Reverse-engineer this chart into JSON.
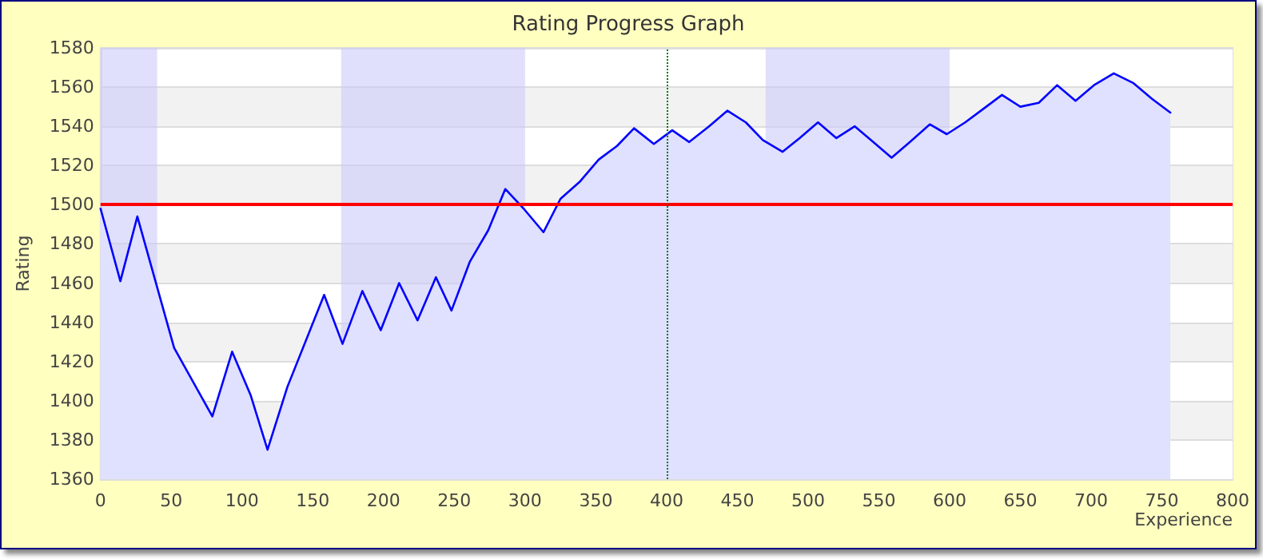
{
  "chart_data": {
    "type": "area",
    "title": "Rating Progress Graph",
    "xlabel": "Experience",
    "ylabel": "Rating",
    "x": [
      0,
      14,
      26,
      52,
      79,
      93,
      106,
      118,
      132,
      158,
      171,
      185,
      198,
      211,
      224,
      237,
      248,
      261,
      274,
      286,
      299,
      313,
      325,
      339,
      352,
      365,
      377,
      391,
      404,
      416,
      430,
      443,
      456,
      468,
      482,
      494,
      507,
      520,
      533,
      546,
      559,
      572,
      586,
      598,
      611,
      624,
      637,
      650,
      663,
      676,
      689,
      702,
      716,
      730,
      743,
      756
    ],
    "series": [
      {
        "color": "#0000ff",
        "values": [
          1498,
          1461,
          1494,
          1427,
          1392,
          1425,
          1403,
          1375,
          1407,
          1454,
          1429,
          1456,
          1436,
          1460,
          1441,
          1463,
          1446,
          1471,
          1487,
          1508,
          1498,
          1486,
          1503,
          1512,
          1523,
          1530,
          1539,
          1531,
          1538,
          1532,
          1540,
          1548,
          1542,
          1533,
          1527,
          1534,
          1542,
          1534,
          1540,
          1532,
          1524,
          1532,
          1541,
          1536,
          1542,
          1549,
          1556,
          1550,
          1552,
          1561,
          1553,
          1561,
          1567,
          1562,
          1554,
          1547
        ]
      }
    ],
    "xlim": [
      0,
      800
    ],
    "xticks": [
      0,
      50,
      100,
      150,
      200,
      250,
      300,
      350,
      400,
      450,
      500,
      550,
      600,
      650,
      700,
      750,
      800
    ],
    "ylim": [
      1360,
      1580
    ],
    "yticks": [
      1360,
      1380,
      1400,
      1420,
      1440,
      1460,
      1480,
      1500,
      1520,
      1540,
      1560,
      1580
    ],
    "grid": "y",
    "marker": "none",
    "line_style": "solid",
    "ref_lines": [
      {
        "axis": "y",
        "value": 1500,
        "color": "#ff0000",
        "line_style": "solid"
      },
      {
        "axis": "x",
        "value": 400,
        "color": "#007700",
        "line_style": "dotted"
      }
    ],
    "bands": [
      {
        "axis": "x",
        "from": 0,
        "to": 40,
        "color": "#ccccfa"
      },
      {
        "axis": "x",
        "from": 170,
        "to": 300,
        "color": "#ccccfa"
      },
      {
        "axis": "x",
        "from": 470,
        "to": 600,
        "color": "#ccccfa"
      }
    ]
  }
}
